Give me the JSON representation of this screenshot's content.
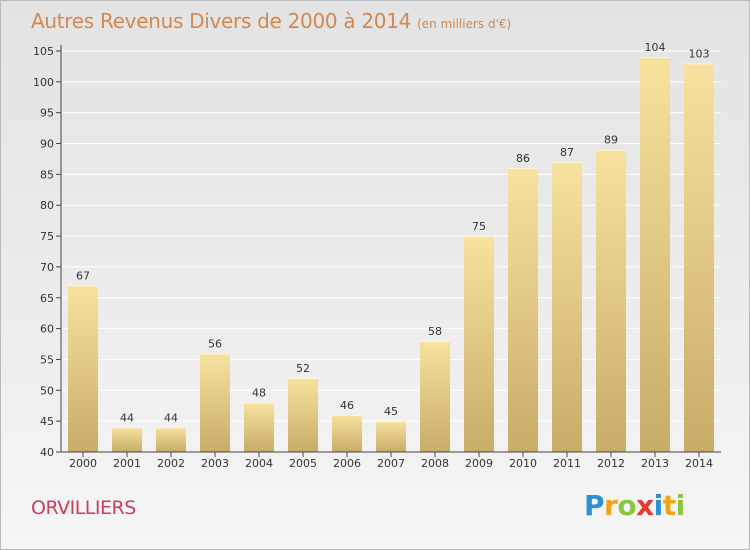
{
  "header": {
    "title": "Autres Revenus Divers de 2000 à 2014",
    "subtitle": "(en milliers d'€)"
  },
  "footer": {
    "commune": "ORVILLIERS",
    "brand_letters": [
      "P",
      "r",
      "o",
      "x",
      "i",
      "t",
      "i"
    ],
    "brand_colors": [
      "#2e8fd1",
      "#f0a21b",
      "#8cc63e",
      "#e63a2d",
      "#2e8fd1",
      "#f0a21b",
      "#8cc63e"
    ]
  },
  "colors": {
    "bar_light": "#f7e2a0",
    "bar_dark": "#c8ac68",
    "axis": "#444444",
    "grid": "#ffffff",
    "title": "#d4884f",
    "commune": "#cf3c5a"
  },
  "chart_data": {
    "type": "bar",
    "title": "Autres Revenus Divers de 2000 à 2014",
    "subtitle": "(en milliers d'€)",
    "xlabel": "",
    "ylabel": "",
    "categories": [
      "2000",
      "2001",
      "2002",
      "2003",
      "2004",
      "2005",
      "2006",
      "2007",
      "2008",
      "2009",
      "2010",
      "2011",
      "2012",
      "2013",
      "2014"
    ],
    "values": [
      67,
      44,
      44,
      56,
      48,
      52,
      46,
      45,
      58,
      75,
      86,
      87,
      89,
      104,
      103
    ],
    "ylim": [
      40,
      105
    ],
    "yticks": [
      40,
      45,
      50,
      55,
      60,
      65,
      70,
      75,
      80,
      85,
      90,
      95,
      100,
      105
    ],
    "grid": true,
    "data_labels": true
  }
}
